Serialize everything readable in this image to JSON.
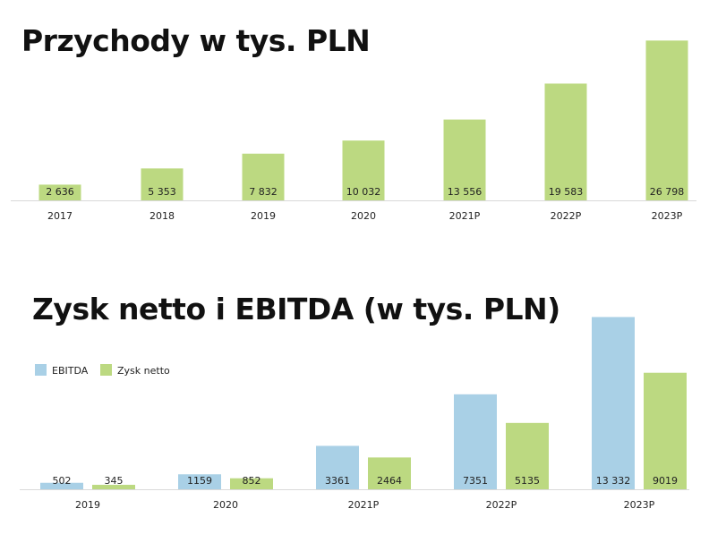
{
  "colors": {
    "revenue": "#bcd981",
    "ebitda": "#a9d0e6",
    "net_profit": "#bcd981",
    "axis": "#d9d9d9"
  },
  "chart_data": [
    {
      "type": "bar",
      "title": "Przychody w tys. PLN",
      "categories": [
        "2017",
        "2018",
        "2019",
        "2020",
        "2021P",
        "2022P",
        "2023P"
      ],
      "values": [
        2636,
        5353,
        7832,
        10032,
        13556,
        19583,
        26798
      ],
      "value_labels": [
        "2 636",
        "5 353",
        "7 832",
        "10 032",
        "13 556",
        "19 583",
        "26 798"
      ],
      "ylim": [
        0,
        27000
      ],
      "grid": false,
      "legend": "none"
    },
    {
      "type": "bar",
      "title": "Zysk netto i EBITDA (w tys. PLN)",
      "categories": [
        "2019",
        "2020",
        "2021P",
        "2022P",
        "2023P"
      ],
      "series": [
        {
          "name": "EBITDA",
          "values": [
            502,
            1159,
            3361,
            7351,
            13332
          ],
          "value_labels": [
            "502",
            "1159",
            "3361",
            "7351",
            "13 332"
          ]
        },
        {
          "name": "Zysk netto",
          "values": [
            345,
            852,
            2464,
            5135,
            9019
          ],
          "value_labels": [
            "345",
            "852",
            "2464",
            "5135",
            "9019"
          ]
        }
      ],
      "ylim": [
        0,
        13500
      ],
      "grid": false,
      "legend": "top-left"
    }
  ]
}
